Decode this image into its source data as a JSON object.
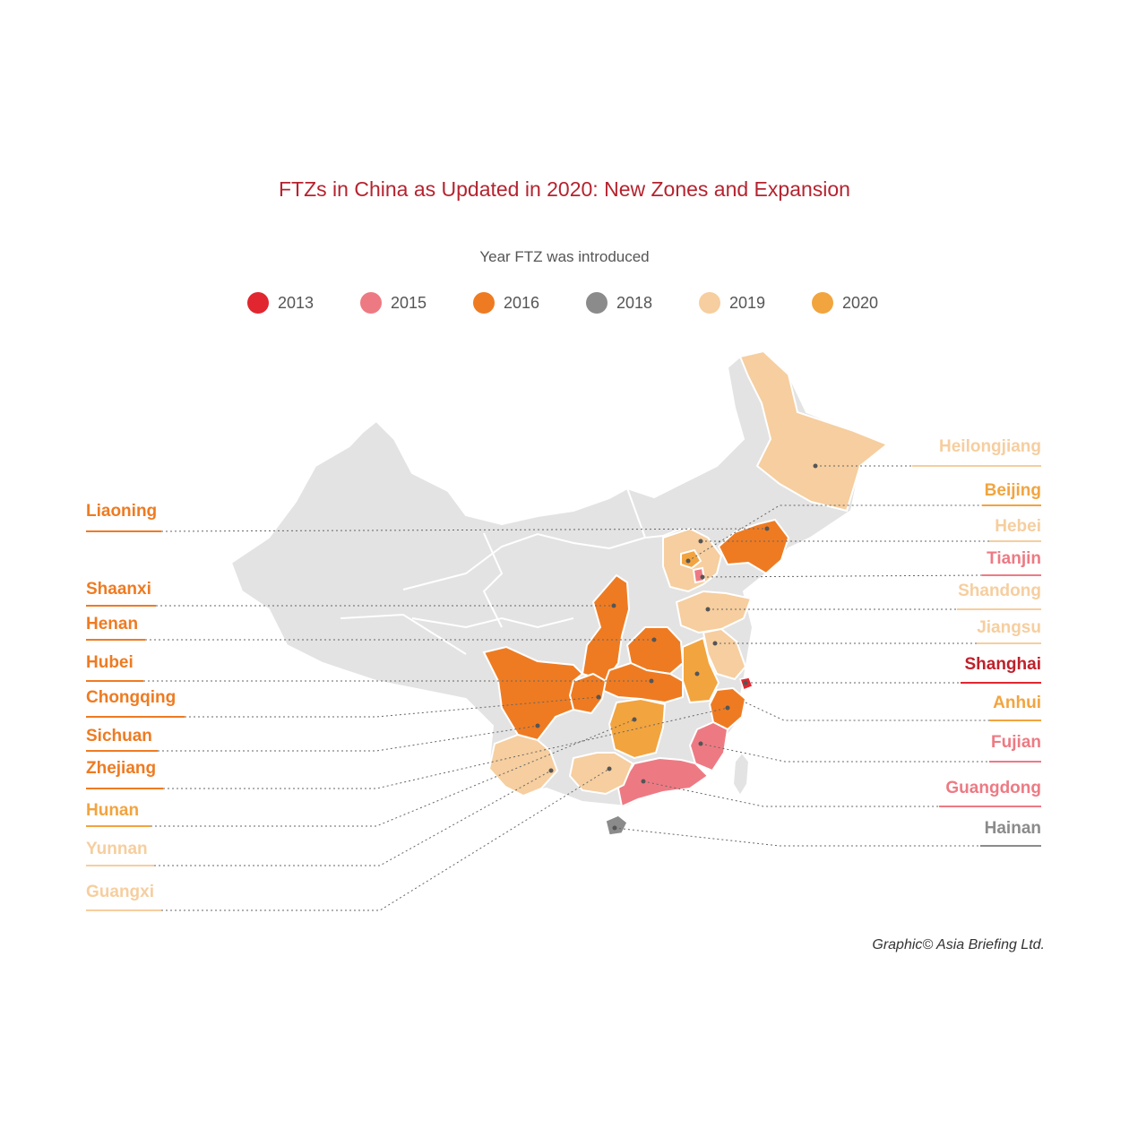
{
  "title": "FTZs in China as Updated in 2020: New Zones and Expansion",
  "legend_title": "Year FTZ was introduced",
  "legend": [
    {
      "year": "2013",
      "color": "#e1262f"
    },
    {
      "year": "2015",
      "color": "#ed7a83"
    },
    {
      "year": "2016",
      "color": "#ee7b22"
    },
    {
      "year": "2018",
      "color": "#8b8b8b"
    },
    {
      "year": "2019",
      "color": "#f6ce9f"
    },
    {
      "year": "2020",
      "color": "#f2a43f"
    }
  ],
  "left_labels": [
    {
      "name": "Liaoning",
      "year": "2016"
    },
    {
      "name": "Shaanxi",
      "year": "2016"
    },
    {
      "name": "Henan",
      "year": "2016"
    },
    {
      "name": "Hubei",
      "year": "2016"
    },
    {
      "name": "Chongqing",
      "year": "2016"
    },
    {
      "name": "Sichuan",
      "year": "2016"
    },
    {
      "name": "Zhejiang",
      "year": "2016"
    },
    {
      "name": "Hunan",
      "year": "2020"
    },
    {
      "name": "Yunnan",
      "year": "2019"
    },
    {
      "name": "Guangxi",
      "year": "2019"
    }
  ],
  "right_labels": [
    {
      "name": "Heilongjiang",
      "year": "2019"
    },
    {
      "name": "Beijing",
      "year": "2020"
    },
    {
      "name": "Hebei",
      "year": "2019"
    },
    {
      "name": "Tianjin",
      "year": "2015"
    },
    {
      "name": "Shandong",
      "year": "2019"
    },
    {
      "name": "Jiangsu",
      "year": "2019"
    },
    {
      "name": "Shanghai",
      "year": "2013"
    },
    {
      "name": "Anhui",
      "year": "2020"
    },
    {
      "name": "Fujian",
      "year": "2015"
    },
    {
      "name": "Guangdong",
      "year": "2015"
    },
    {
      "name": "Hainan",
      "year": "2018"
    }
  ],
  "credit": "Graphic© Asia Briefing Ltd."
}
